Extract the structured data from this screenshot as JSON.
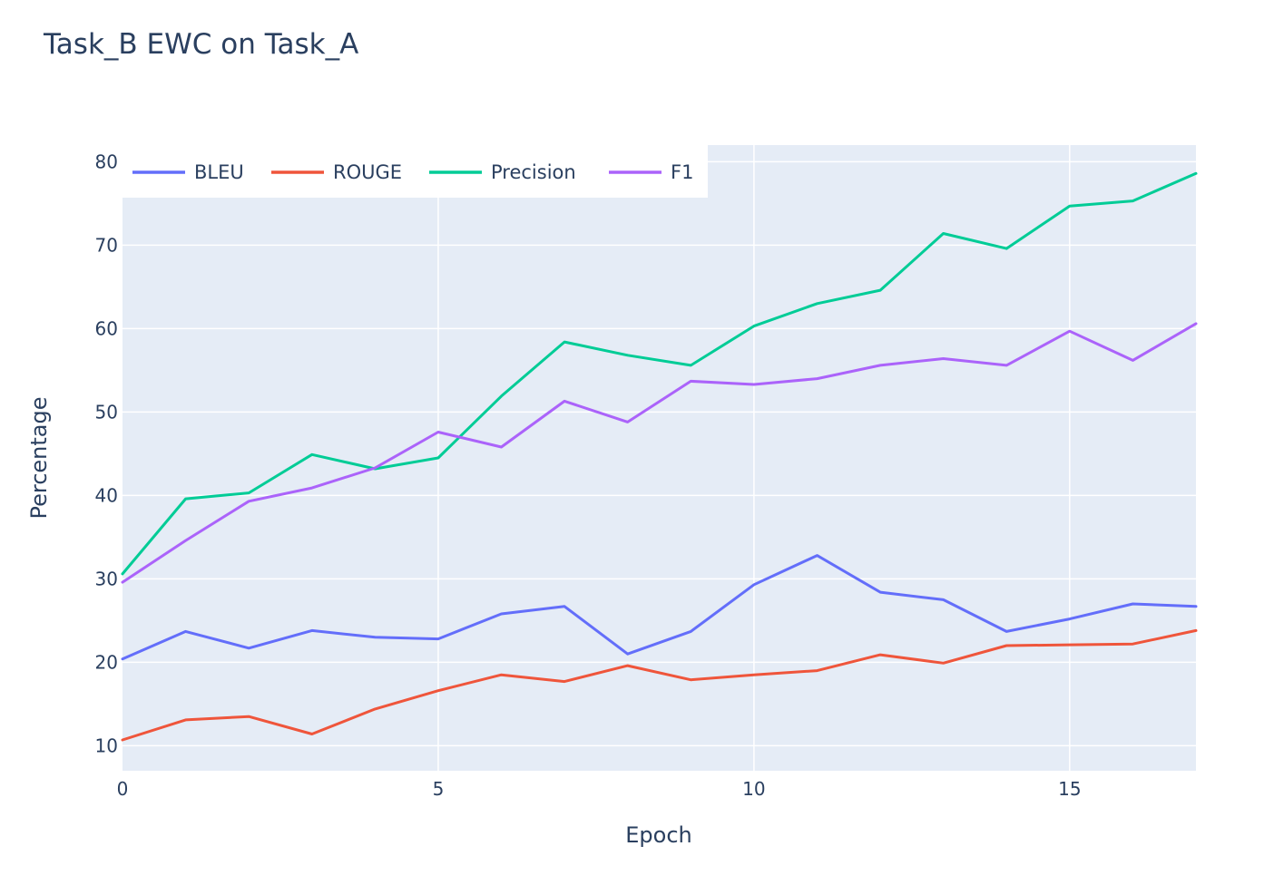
{
  "chart_data": {
    "type": "line",
    "title": "Task_B EWC on Task_A",
    "xlabel": "Epoch",
    "ylabel": "Percentage",
    "xlim": [
      0,
      17
    ],
    "ylim": [
      7,
      82
    ],
    "x_ticks": [
      0,
      5,
      10,
      15
    ],
    "y_ticks": [
      10,
      20,
      30,
      40,
      50,
      60,
      70,
      80
    ],
    "grid": true,
    "legend_placement": "top-left, horizontal",
    "plot_background": "#e5ecf6",
    "x": [
      0,
      1,
      2,
      3,
      4,
      5,
      6,
      7,
      8,
      9,
      10,
      11,
      12,
      13,
      14,
      15,
      16,
      17
    ],
    "series": [
      {
        "name": "BLEU",
        "color": "#636efa",
        "values": [
          20.4,
          23.7,
          21.7,
          23.8,
          23.0,
          22.8,
          25.8,
          26.7,
          21.0,
          23.7,
          29.3,
          32.8,
          28.4,
          27.5,
          23.7,
          25.2,
          27.0,
          26.7
        ]
      },
      {
        "name": "ROUGE",
        "color": "#ef553b",
        "values": [
          10.7,
          13.1,
          13.5,
          11.4,
          14.4,
          16.6,
          18.5,
          17.7,
          19.6,
          17.9,
          18.5,
          19.0,
          20.9,
          19.9,
          22.0,
          22.1,
          22.2,
          23.8
        ]
      },
      {
        "name": "Precision",
        "color": "#00cc96",
        "values": [
          30.6,
          39.6,
          40.3,
          44.9,
          43.2,
          44.5,
          51.9,
          58.4,
          56.8,
          55.6,
          60.3,
          63.0,
          64.6,
          71.4,
          69.6,
          74.7,
          75.3,
          78.6
        ]
      },
      {
        "name": "F1",
        "color": "#ab63fa",
        "values": [
          29.6,
          34.6,
          39.3,
          40.9,
          43.3,
          47.6,
          45.8,
          51.3,
          48.8,
          53.7,
          53.3,
          54.0,
          55.6,
          56.4,
          55.6,
          59.7,
          56.2,
          60.6
        ]
      }
    ]
  }
}
